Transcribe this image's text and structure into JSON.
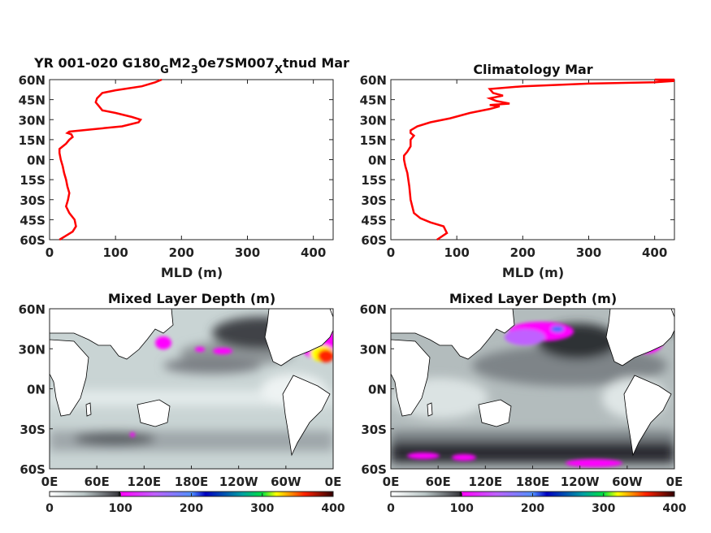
{
  "chart_data": [
    {
      "type": "line",
      "panel": "top-left",
      "title_parts": [
        {
          "t": "YR 001-020 G180",
          "sub": false
        },
        {
          "t": "G",
          "sub": true
        },
        {
          "t": "M2",
          "sub": false
        },
        {
          "t": "3",
          "sub": true
        },
        {
          "t": "0e7SM007",
          "sub": false
        },
        {
          "t": "X",
          "sub": true
        },
        {
          "t": "tnud Mar",
          "sub": false
        }
      ],
      "xlabel": "MLD (m)",
      "xlim": [
        0,
        430
      ],
      "ylim": [
        -60,
        60
      ],
      "xticks": [
        0,
        100,
        200,
        300,
        400
      ],
      "yticks": [
        60,
        45,
        30,
        15,
        0,
        -15,
        -30,
        -45,
        -60
      ],
      "ytick_labels": [
        "60N",
        "45N",
        "30N",
        "15N",
        "0N",
        "15S",
        "30S",
        "45S",
        "60S"
      ],
      "series": [
        {
          "color": "#ff0000",
          "x": [
            15,
            25,
            35,
            40,
            38,
            30,
            25,
            28,
            30,
            27,
            25,
            22,
            20,
            17,
            15,
            15,
            20,
            25,
            30,
            35,
            33,
            27,
            30,
            70,
            110,
            135,
            138,
            125,
            100,
            80,
            75,
            70,
            72,
            80,
            100,
            140,
            160,
            170
          ],
          "y": [
            -60,
            -57,
            -54,
            -50,
            -45,
            -40,
            -35,
            -30,
            -25,
            -20,
            -15,
            -10,
            -5,
            0,
            5,
            8,
            10,
            12,
            15,
            17,
            19,
            20,
            21,
            23,
            25,
            28,
            30,
            32,
            35,
            37,
            40,
            43,
            46,
            50,
            52,
            55,
            58,
            60
          ]
        }
      ]
    },
    {
      "type": "line",
      "panel": "top-right",
      "title": "Climatology Mar",
      "xlabel": "MLD (m)",
      "xlim": [
        0,
        430
      ],
      "ylim": [
        -60,
        60
      ],
      "xticks": [
        0,
        100,
        200,
        300,
        400
      ],
      "yticks": [
        60,
        45,
        30,
        15,
        0,
        -15,
        -30,
        -45,
        -60
      ],
      "ytick_labels": [
        "60N",
        "45N",
        "30N",
        "15N",
        "0N",
        "15S",
        "30S",
        "45S",
        "60S"
      ],
      "series": [
        {
          "color": "#ff0000",
          "x": [
            70,
            85,
            80,
            60,
            45,
            35,
            30,
            28,
            25,
            22,
            20,
            20,
            25,
            30,
            30,
            35,
            30,
            30,
            40,
            60,
            90,
            120,
            150,
            165,
            150,
            180,
            160,
            150,
            170,
            155,
            150,
            200,
            300,
            400,
            430,
            400,
            430
          ],
          "y": [
            -60,
            -55,
            -50,
            -47,
            -44,
            -40,
            -30,
            -20,
            -10,
            -5,
            0,
            3,
            6,
            10,
            15,
            18,
            20,
            22,
            25,
            28,
            31,
            35,
            38,
            40,
            41,
            42,
            44,
            46,
            48,
            50,
            53,
            55,
            57,
            58,
            59,
            60,
            60
          ]
        }
      ]
    },
    {
      "type": "heatmap",
      "panel": "bottom-left",
      "title": "Mixed Layer Depth (m)",
      "xticks": [
        "0E",
        "60E",
        "120E",
        "180E",
        "120W",
        "60W",
        "0E"
      ],
      "yticks": [
        "60N",
        "30N",
        "0N",
        "30S",
        "60S"
      ],
      "xlim": [
        0,
        360
      ],
      "ylim": [
        -60,
        60
      ],
      "colorbar": {
        "ticks": [
          "0",
          "100",
          "200",
          "300",
          "400"
        ],
        "range": [
          0,
          400
        ]
      }
    },
    {
      "type": "heatmap",
      "panel": "bottom-right",
      "title": "Mixed Layer Depth (m)",
      "xticks": [
        "0E",
        "60E",
        "120E",
        "180E",
        "120W",
        "60W",
        "0E"
      ],
      "yticks": [
        "60N",
        "30N",
        "0N",
        "30S",
        "60S"
      ],
      "xlim": [
        0,
        360
      ],
      "ylim": [
        -60,
        60
      ],
      "colorbar": {
        "ticks": [
          "0",
          "100",
          "200",
          "300",
          "400"
        ],
        "range": [
          0,
          400
        ]
      }
    }
  ],
  "colors": {
    "line": "#ff0000",
    "ocean_low": "#e8efef",
    "land": "#ffffff"
  }
}
